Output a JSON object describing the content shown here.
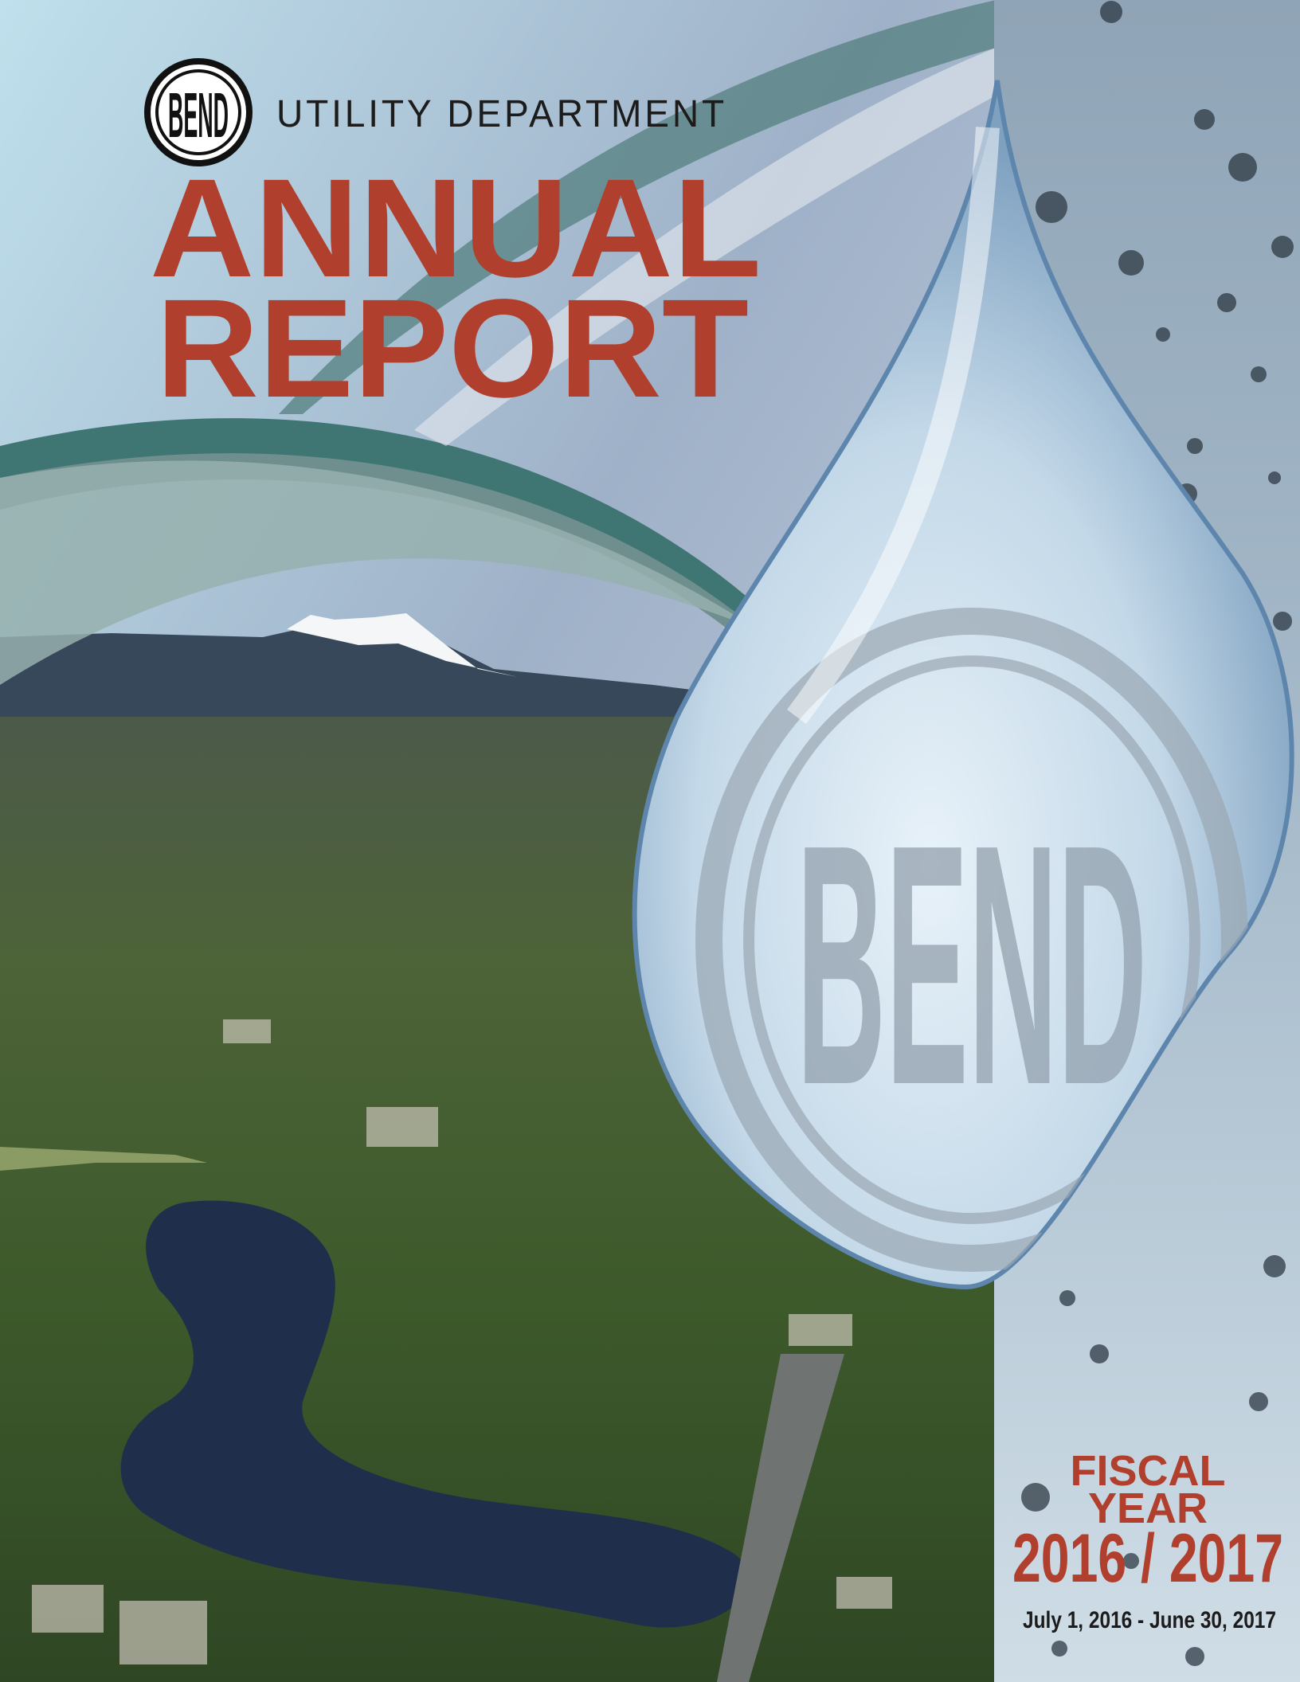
{
  "header": {
    "logo": "BEND",
    "department": "UTILITY DEPARTMENT",
    "title_line1": "ANNUAL",
    "title_line2": "REPORT"
  },
  "fiscal": {
    "line1": "FISCAL",
    "line2": "YEAR",
    "years": "2016 / 2017",
    "dates": "July 1, 2016 - June 30, 2017"
  }
}
